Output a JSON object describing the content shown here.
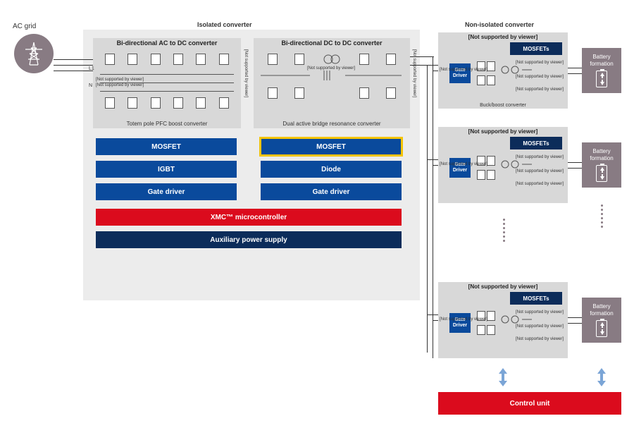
{
  "labels": {
    "ac_grid": "AC grid",
    "isolated": "<b>Isolated converter</b>",
    "nonisolated": "<b>Non-isolated converter</b>",
    "not_supported": "[Not supported by viewer]",
    "not_supported_short": "[Not supported by viewer]",
    "l1": "L1",
    "n": "N"
  },
  "left_block": {
    "title": "Bi-directional AC to DC converter",
    "caption": "Totem pole PFC boost converter",
    "btns": [
      "MOSFET",
      "IGBT",
      "Gate driver"
    ]
  },
  "right_block": {
    "title": "Bi-directional DC to DC converter",
    "caption": "Dual active bridge resonance converter",
    "btns": [
      "MOSFET",
      "Diode",
      "Gate driver"
    ]
  },
  "wide": {
    "xmc": "XMC™ microcontroller",
    "aux": "Auxiliary power supply"
  },
  "noniso": {
    "title": "[Not supported by viewer]",
    "mosfets": "MOSFETs",
    "gate": "Gate Driver",
    "caption": "Buck/boost converter"
  },
  "battery": "Battery formation",
  "control": "Control unit",
  "colors": {
    "blue": "#0a4a9c",
    "navy": "#0c2c5a",
    "red": "#db0b1d",
    "gray": "#d8d8d8",
    "lightgray": "#ececec",
    "brown": "#887b83",
    "hl": "#f5c400"
  }
}
